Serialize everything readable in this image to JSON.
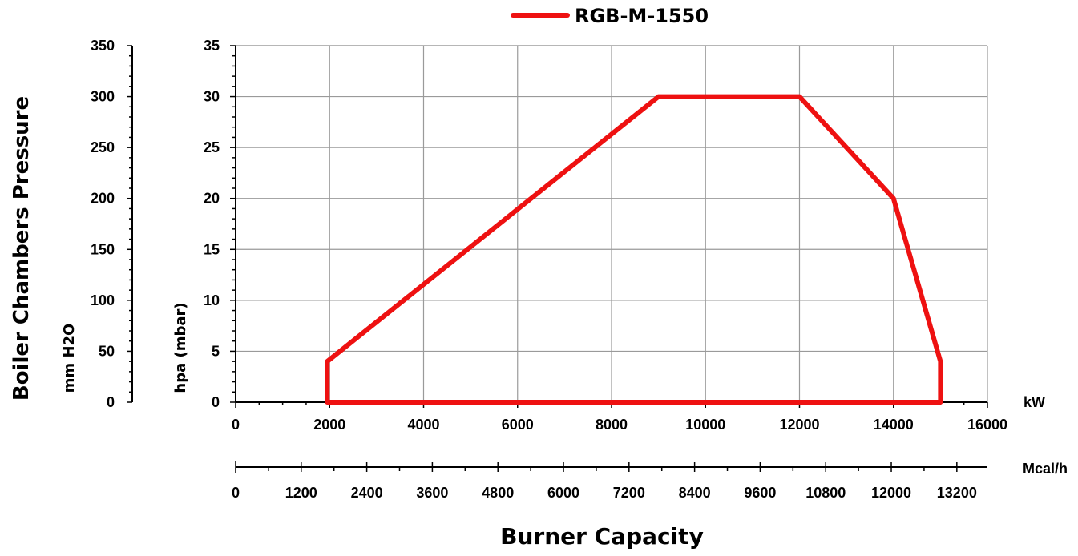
{
  "chart_data": {
    "type": "line",
    "title": "",
    "legend": {
      "placement": "top-center",
      "entries": [
        "RGB-M-1550"
      ]
    },
    "xlabel": "Burner Capacity",
    "x_unit_primary": "kW",
    "x_unit_secondary": "Mcal/h",
    "ylabel_outer": "Boiler Chambers Pressure",
    "ylabel_mm": "mm H2O",
    "ylabel_hpa": "hpa (mbar)",
    "xlim": [
      0,
      16000
    ],
    "ylim_hpa": [
      0,
      35
    ],
    "ylim_mm": [
      0,
      350
    ],
    "xlim_mcal": [
      0,
      13760
    ],
    "grid": true,
    "series": [
      {
        "name": "RGB-M-1550",
        "color": "#ee1111",
        "x": [
          1950,
          1950,
          9000,
          12000,
          14000,
          15000,
          15000,
          1950
        ],
        "y": [
          0,
          4,
          30,
          30,
          20,
          4,
          0,
          0
        ]
      }
    ],
    "x_ticks_kw": [
      "0",
      "2000",
      "4000",
      "6000",
      "8000",
      "10000",
      "12000",
      "14000",
      "16000"
    ],
    "x_ticks_mcal": [
      "0",
      "1200",
      "2400",
      "3600",
      "4800",
      "6000",
      "7200",
      "8400",
      "9600",
      "10800",
      "12000",
      "13200"
    ],
    "y_ticks_hpa": [
      "0",
      "5",
      "10",
      "15",
      "20",
      "25",
      "30",
      "35"
    ],
    "y_ticks_mm": [
      "0",
      "50",
      "100",
      "150",
      "200",
      "250",
      "300",
      "350"
    ]
  }
}
